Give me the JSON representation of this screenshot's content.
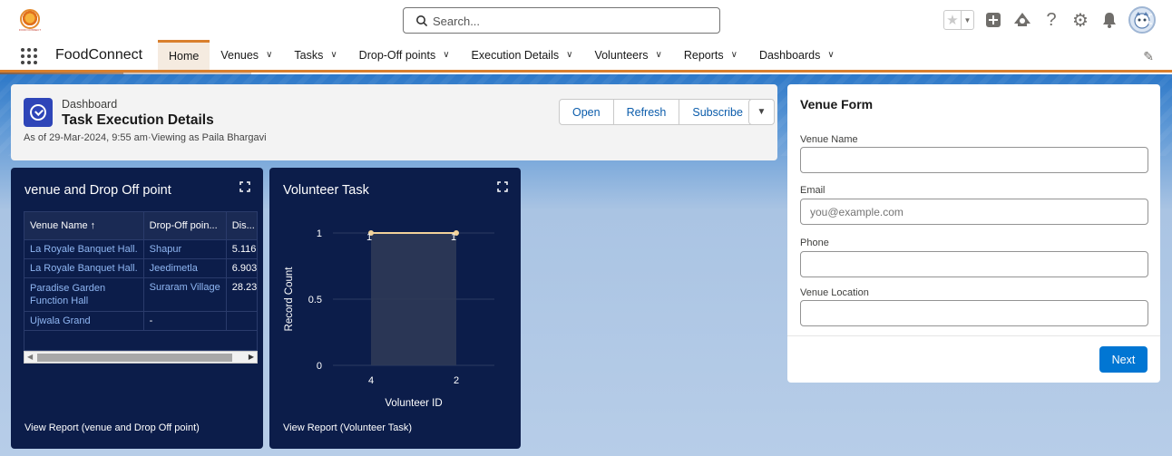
{
  "header": {
    "logo_text": "FOOD CONNECT",
    "search_placeholder": "Search..."
  },
  "nav": {
    "app_name": "FoodConnect",
    "tabs": [
      {
        "label": "Home",
        "active": true
      },
      {
        "label": "Venues"
      },
      {
        "label": "Tasks"
      },
      {
        "label": "Drop-Off points"
      },
      {
        "label": "Execution Details"
      },
      {
        "label": "Volunteers"
      },
      {
        "label": "Reports"
      },
      {
        "label": "Dashboards"
      }
    ]
  },
  "dashboard": {
    "kicker": "Dashboard",
    "title": "Task Execution Details",
    "subtitle": "As of 29-Mar-2024, 9:55 am·Viewing as Paila Bhargavi",
    "buttons": [
      "Open",
      "Refresh",
      "Subscribe"
    ]
  },
  "widget_table": {
    "title": "venue and Drop Off point",
    "columns": [
      "Venue Name ↑",
      "Drop-Off poin...",
      "Dis..."
    ],
    "rows": [
      [
        "La Royale Banquet Hall.",
        "Shapur",
        "5.116"
      ],
      [
        "La Royale Banquet Hall.",
        "Jeedimetla",
        "6.903"
      ],
      [
        "Paradise Garden Function Hall",
        "Suraram Village",
        "28.23"
      ],
      [
        "Ujwala Grand",
        "-",
        "-"
      ]
    ],
    "footer": "View Report (venue and Drop Off point)"
  },
  "widget_chart": {
    "title": "Volunteer Task",
    "footer": "View Report (Volunteer Task)"
  },
  "chart_data": {
    "type": "area",
    "categories": [
      "4",
      "2"
    ],
    "values": [
      1,
      1
    ],
    "data_labels": [
      "1",
      "1"
    ],
    "xlabel": "Volunteer ID",
    "ylabel": "Record Count",
    "ylim": [
      0,
      1
    ],
    "yticks": [
      "1",
      "0.5",
      "0"
    ],
    "colors": {
      "line": "#f3d39a",
      "area": "#2e3a57",
      "grid": "#2c3a63"
    }
  },
  "venue_form": {
    "title": "Venue Form",
    "fields": [
      {
        "label": "Venue Name",
        "placeholder": ""
      },
      {
        "label": "Email",
        "placeholder": "you@example.com"
      },
      {
        "label": "Phone",
        "placeholder": ""
      },
      {
        "label": "Venue Location",
        "placeholder": ""
      }
    ],
    "next_label": "Next"
  }
}
